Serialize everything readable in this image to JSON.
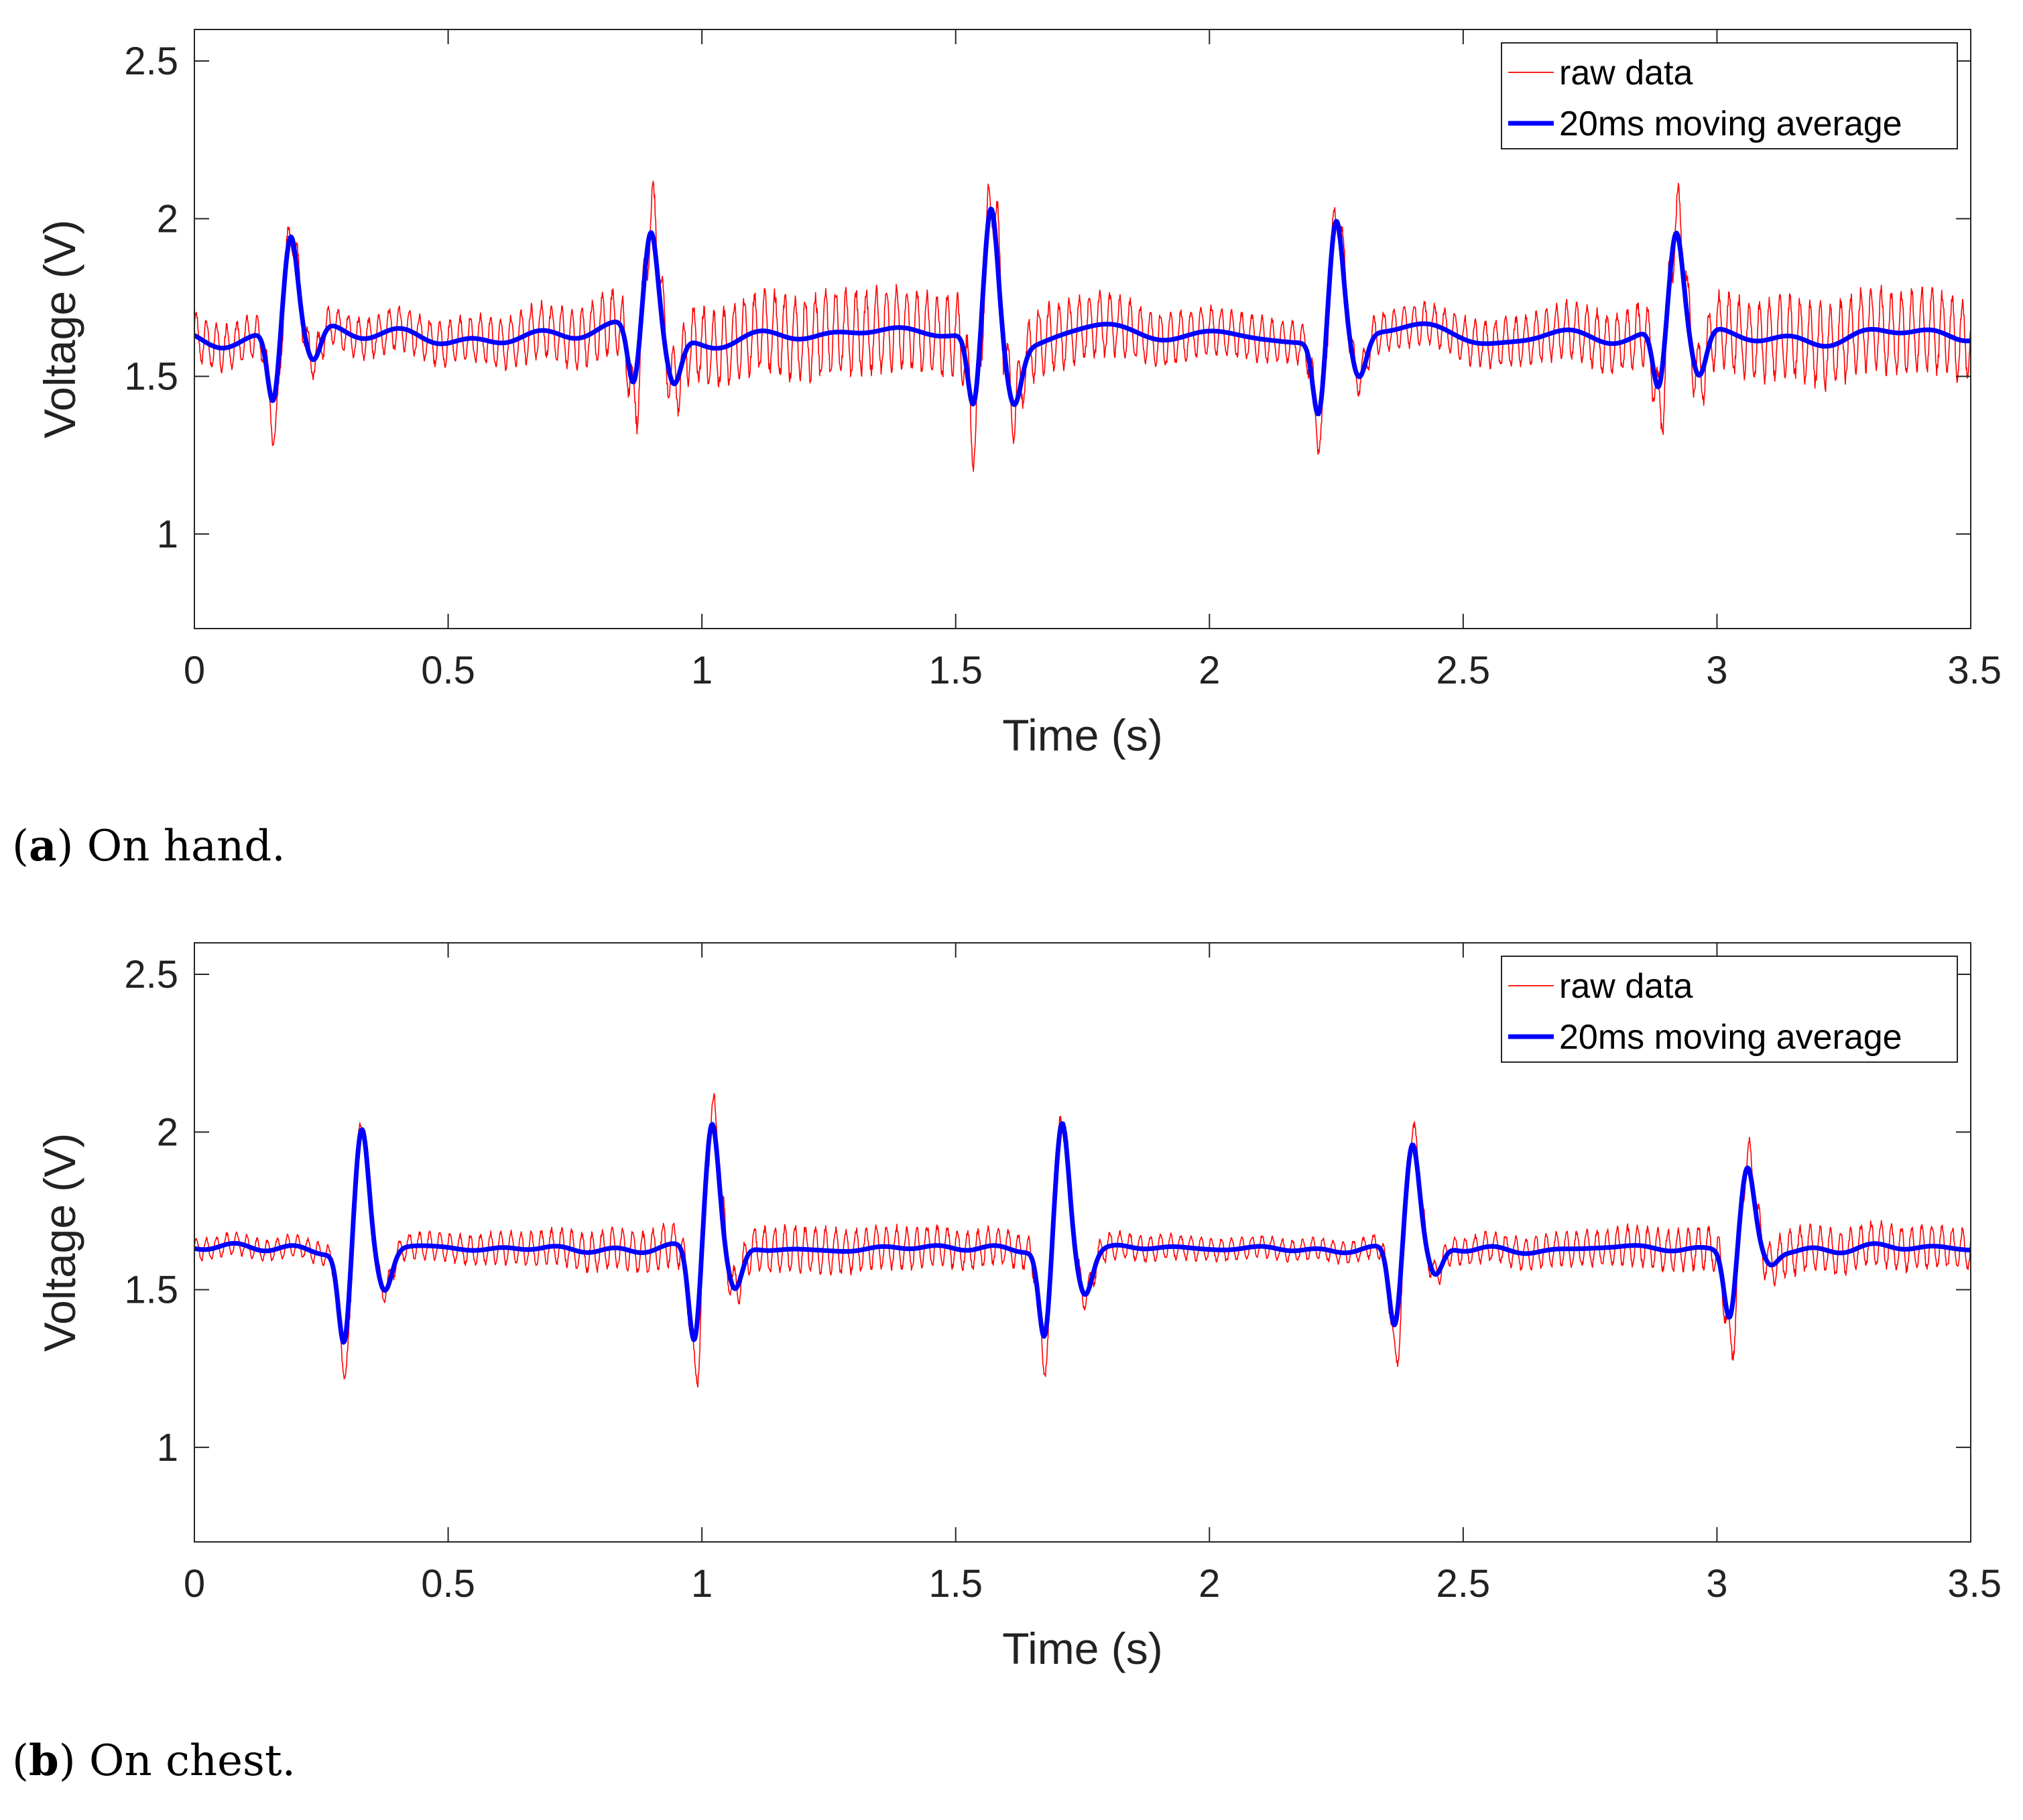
{
  "chart_data": [
    {
      "type": "line",
      "panel": "a",
      "caption_letter": "a",
      "caption_text": "On hand.",
      "title": "",
      "xlabel": "Time (s)",
      "ylabel": "Voltage (V)",
      "xlim": [
        0,
        3.5
      ],
      "ylim": [
        0.7,
        2.6
      ],
      "xticks": [
        0,
        0.5,
        1,
        1.5,
        2,
        2.5,
        3,
        3.5
      ],
      "xtick_labels": [
        "0",
        "0.5",
        "1",
        "1.5",
        "2",
        "2.5",
        "3",
        "3.5"
      ],
      "yticks": [
        1,
        1.5,
        2,
        2.5
      ],
      "ytick_labels": [
        "1",
        "1.5",
        "2",
        "2.5"
      ],
      "grid": false,
      "legend_position": "top-right",
      "series": [
        {
          "name": "raw data",
          "color": "#ff0000",
          "style": "thin",
          "baseline": 1.62,
          "oscillation_hz": 50,
          "oscillation_amplitude": 0.11,
          "peaks": [
            {
              "t": 0.19,
              "max": 1.99,
              "min": 1.23
            },
            {
              "t": 0.9,
              "max": 2.15,
              "min": 1.33
            },
            {
              "t": 1.57,
              "max": 2.18,
              "min": 1.21
            },
            {
              "t": 2.25,
              "max": 2.08,
              "min": 1.31
            },
            {
              "t": 2.92,
              "max": 2.13,
              "min": 1.29
            }
          ]
        },
        {
          "name": "20ms moving average",
          "color": "#0000ff",
          "style": "thick",
          "baseline": 1.63,
          "wander_amplitude": 0.04,
          "peaks": [
            {
              "t": 0.19,
              "max": 1.94,
              "min": 1.41,
              "after": 1.52
            },
            {
              "t": 0.9,
              "max": 1.95,
              "min": 1.44,
              "after": 1.48
            },
            {
              "t": 1.57,
              "max": 2.05,
              "min": 1.4,
              "after": 1.45
            },
            {
              "t": 2.25,
              "max": 2.0,
              "min": 1.39,
              "after": 1.49
            },
            {
              "t": 2.92,
              "max": 1.94,
              "min": 1.44,
              "after": 1.48
            }
          ]
        }
      ]
    },
    {
      "type": "line",
      "panel": "b",
      "caption_letter": "b",
      "caption_text": "On chest.",
      "title": "",
      "xlabel": "Time (s)",
      "ylabel": "Voltage (V)",
      "xlim": [
        0,
        3.5
      ],
      "ylim": [
        0.7,
        2.6
      ],
      "xticks": [
        0,
        0.5,
        1,
        1.5,
        2,
        2.5,
        3,
        3.5
      ],
      "xtick_labels": [
        "0",
        "0.5",
        "1",
        "1.5",
        "2",
        "2.5",
        "3",
        "3.5"
      ],
      "yticks": [
        1,
        1.5,
        2,
        2.5
      ],
      "ytick_labels": [
        "1",
        "1.5",
        "2",
        "2.5"
      ],
      "grid": false,
      "legend_position": "top-right",
      "series": [
        {
          "name": "raw data",
          "color": "#ff0000",
          "style": "thin",
          "baseline": 1.63,
          "oscillation_hz": 50,
          "oscillation_amplitude": 0.06,
          "peaks": [
            {
              "t": 0.33,
              "max": 2.05,
              "min": 1.25
            },
            {
              "t": 1.02,
              "max": 2.15,
              "min": 1.15
            },
            {
              "t": 1.71,
              "max": 2.05,
              "min": 1.26
            },
            {
              "t": 2.4,
              "max": 2.07,
              "min": 1.21
            },
            {
              "t": 3.06,
              "max": 1.98,
              "min": 1.25
            }
          ]
        },
        {
          "name": "20ms moving average",
          "color": "#0000ff",
          "style": "thick",
          "baseline": 1.63,
          "wander_amplitude": 0.015,
          "peaks": [
            {
              "t": 0.33,
              "max": 2.01,
              "min": 1.33,
              "after": 1.5
            },
            {
              "t": 1.02,
              "max": 2.03,
              "min": 1.33,
              "after": 1.49
            },
            {
              "t": 1.71,
              "max": 2.03,
              "min": 1.34,
              "after": 1.5
            },
            {
              "t": 2.4,
              "max": 1.96,
              "min": 1.38,
              "after": 1.53
            },
            {
              "t": 3.06,
              "max": 1.88,
              "min": 1.41,
              "after": 1.58
            }
          ]
        }
      ]
    }
  ]
}
